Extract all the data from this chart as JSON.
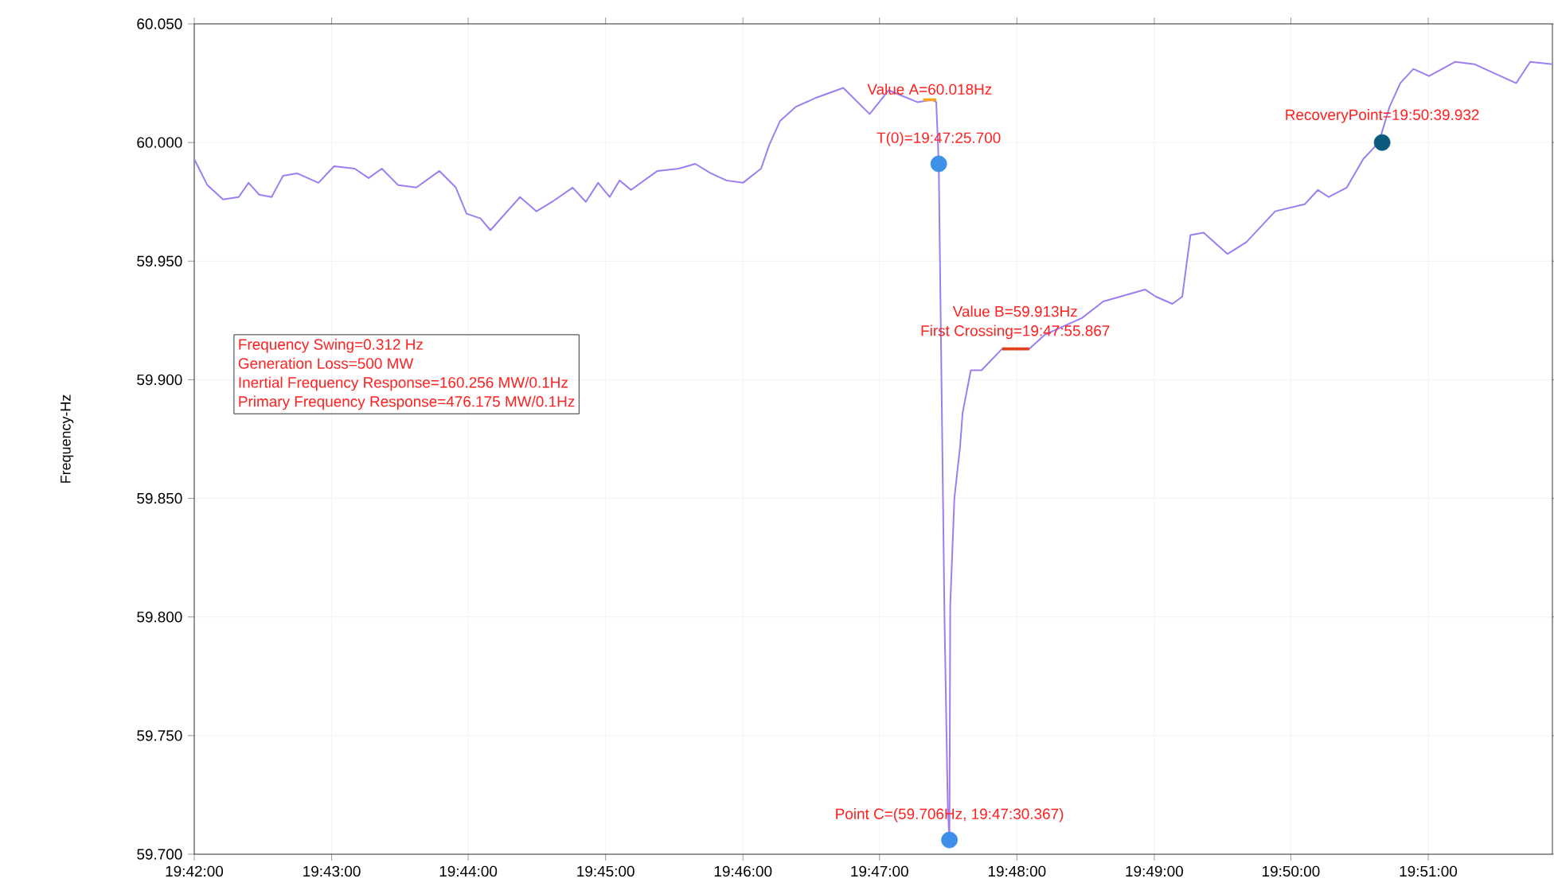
{
  "chart_data": {
    "type": "line",
    "ylabel": "Frequency-Hz",
    "xlim": [
      19.7,
      19.8651
    ],
    "ylim": [
      59.7,
      60.05
    ],
    "xticks": [
      {
        "value": 19.7,
        "label": "19:42:00"
      },
      {
        "value": 19.7167,
        "label": "19:43:00"
      },
      {
        "value": 19.7333,
        "label": "19:44:00"
      },
      {
        "value": 19.75,
        "label": "19:45:00"
      },
      {
        "value": 19.7667,
        "label": "19:46:00"
      },
      {
        "value": 19.7833,
        "label": "19:47:00"
      },
      {
        "value": 19.8,
        "label": "19:48:00"
      },
      {
        "value": 19.8167,
        "label": "19:49:00"
      },
      {
        "value": 19.8333,
        "label": "19:50:00"
      },
      {
        "value": 19.85,
        "label": "19:51:00"
      }
    ],
    "yticks": [
      {
        "value": 59.7,
        "label": "59.700"
      },
      {
        "value": 59.75,
        "label": "59.750"
      },
      {
        "value": 59.8,
        "label": "59.800"
      },
      {
        "value": 59.85,
        "label": "59.850"
      },
      {
        "value": 59.9,
        "label": "59.900"
      },
      {
        "value": 59.95,
        "label": "59.950"
      },
      {
        "value": 60.0,
        "label": "60.000"
      },
      {
        "value": 60.05,
        "label": "60.050"
      }
    ],
    "grid": true,
    "series": [
      {
        "type": "line",
        "color": "#9d7ef2",
        "x": [
          19.7,
          19.7016,
          19.7035,
          19.7054,
          19.7066,
          19.7079,
          19.7094,
          19.7108,
          19.7125,
          19.7151,
          19.717,
          19.7195,
          19.7212,
          19.7228,
          19.7248,
          19.727,
          19.7298,
          19.7318,
          19.7331,
          19.7348,
          19.736,
          19.7396,
          19.7416,
          19.7435,
          19.746,
          19.7476,
          19.7491,
          19.7505,
          19.7517,
          19.7531,
          19.7563,
          19.7589,
          19.7609,
          19.7628,
          19.7647,
          19.7667,
          19.7689,
          19.7699,
          19.7712,
          19.7731,
          19.7757,
          19.7789,
          19.7821,
          19.7844,
          19.7879,
          19.7897,
          19.7902,
          19.7905,
          19.7912,
          19.7916,
          19.7918,
          19.7919,
          19.7924,
          19.7931,
          19.7934,
          19.7944,
          19.7957,
          19.7982,
          19.8015,
          19.8034,
          19.8053,
          19.8079,
          19.8105,
          19.8156,
          19.8169,
          19.8189,
          19.8201,
          19.8211,
          19.8227,
          19.8256,
          19.8279,
          19.8314,
          19.835,
          19.8366,
          19.8379,
          19.8401,
          19.8421,
          19.844,
          19.8453,
          19.8466,
          19.8482,
          19.8501,
          19.8533,
          19.8556,
          19.8607,
          19.8624,
          19.8651
        ],
        "values": [
          59.993,
          59.982,
          59.976,
          59.977,
          59.983,
          59.978,
          59.977,
          59.986,
          59.987,
          59.983,
          59.99,
          59.989,
          59.985,
          59.989,
          59.982,
          59.981,
          59.988,
          59.981,
          59.97,
          59.968,
          59.963,
          59.977,
          59.971,
          59.975,
          59.981,
          59.975,
          59.983,
          59.977,
          59.984,
          59.98,
          59.988,
          59.989,
          59.991,
          59.987,
          59.984,
          59.983,
          59.989,
          59.999,
          60.009,
          60.015,
          60.019,
          60.023,
          60.012,
          60.022,
          60.017,
          60.018,
          60.017,
          59.991,
          59.8,
          59.72,
          59.706,
          59.805,
          59.85,
          59.872,
          59.886,
          59.904,
          59.904,
          59.913,
          59.913,
          59.919,
          59.922,
          59.926,
          59.933,
          59.938,
          59.935,
          59.932,
          59.935,
          59.961,
          59.962,
          59.953,
          59.958,
          59.971,
          59.974,
          59.98,
          59.977,
          59.981,
          59.993,
          60.0,
          60.015,
          60.025,
          60.031,
          60.028,
          60.034,
          60.033,
          60.025,
          60.034,
          60.033
        ]
      },
      {
        "type": "line",
        "color": "#f5a623",
        "x": [
          19.7886,
          19.7902
        ],
        "values": [
          60.018,
          60.018
        ]
      },
      {
        "type": "line",
        "color": "#e0401a",
        "x": [
          19.7982,
          19.8015
        ],
        "values": [
          59.913,
          59.913
        ]
      },
      {
        "type": "scatter",
        "marker": "circle",
        "color": "#3d8fe8",
        "x": [
          19.7905
        ],
        "values": [
          59.991
        ]
      },
      {
        "type": "scatter",
        "marker": "circle",
        "color": "#3d8fe8",
        "x": [
          19.7918
        ],
        "values": [
          59.706
        ]
      },
      {
        "type": "scatter",
        "marker": "circle",
        "color": "#0b5a7e",
        "x": [
          19.8444
        ],
        "values": [
          60.0
        ]
      }
    ],
    "annotations": [
      {
        "text": "Value A=60.018Hz",
        "x": 19.7894,
        "y": 60.018
      },
      {
        "text": "T(0)=19:47:25.700",
        "x": 19.7905,
        "y": 59.991
      },
      {
        "text": "Value B=59.913Hz",
        "x": 19.7998,
        "y": 59.913
      },
      {
        "text": "First Crossing=19:47:55.867",
        "x": 19.7998,
        "y": 59.913
      },
      {
        "text": "RecoveryPoint=19:50:39.932",
        "x": 19.8444,
        "y": 60.0
      },
      {
        "text": "Point C=(59.706Hz, 19:47:30.367)",
        "x": 19.7918,
        "y": 59.706
      },
      "Frequency Swing=0.312 Hz",
      "Generation Loss=500 MW",
      "Inertial Frequency Response=160.256 MW/0.1Hz",
      "Primary Frequency Response=476.175 MW/0.1Hz"
    ]
  }
}
